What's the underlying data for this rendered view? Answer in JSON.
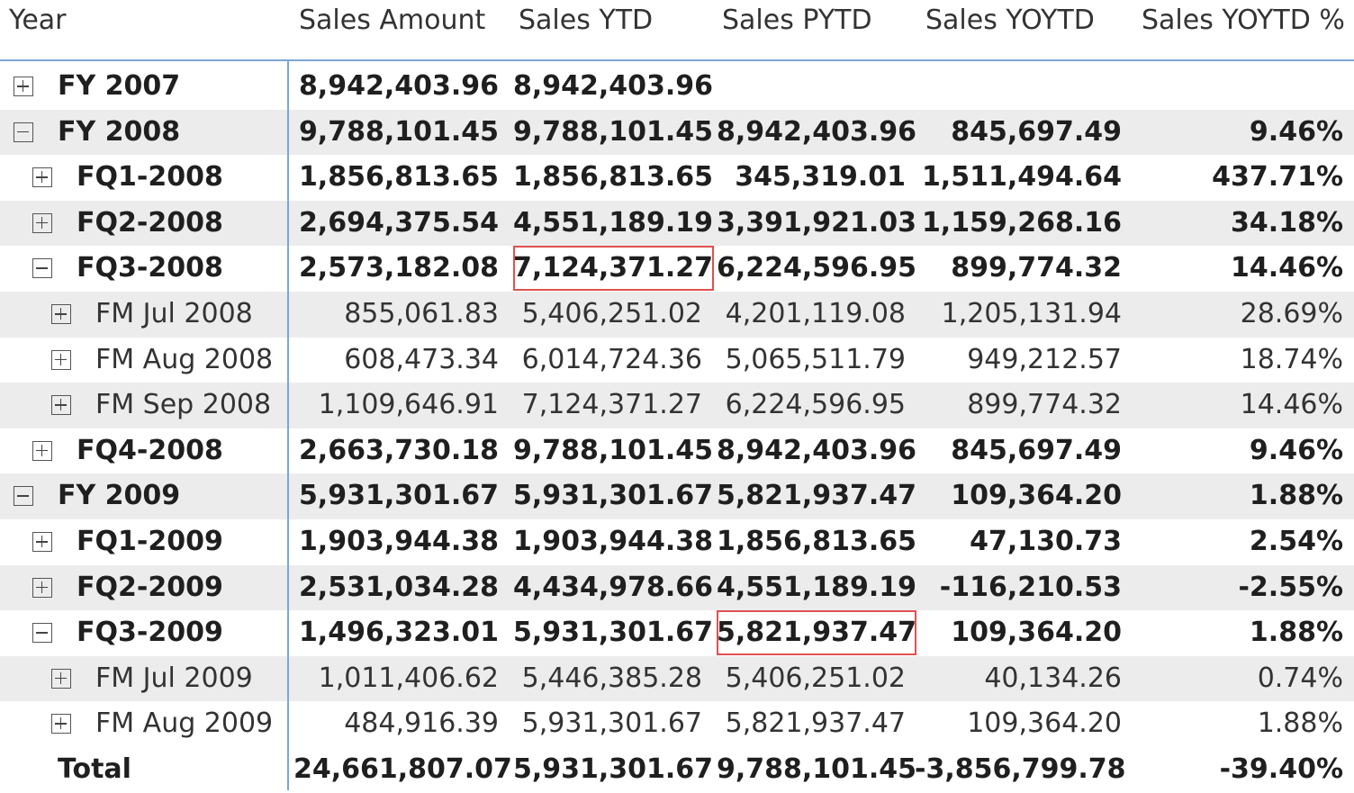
{
  "columns": [
    "Year",
    "Sales Amount",
    "Sales YTD",
    "Sales PYTD",
    "Sales YOYTD",
    "Sales YOYTD %"
  ],
  "rows": [
    {
      "label": "FY 2007",
      "level": 0,
      "state": "collapsed",
      "bold": true,
      "shaded": false,
      "values": [
        "8,942,403.96",
        "8,942,403.96",
        "",
        "",
        ""
      ]
    },
    {
      "label": "FY 2008",
      "level": 0,
      "state": "expanded",
      "bold": true,
      "shaded": true,
      "values": [
        "9,788,101.45",
        "9,788,101.45",
        "8,942,403.96",
        "845,697.49",
        "9.46%"
      ]
    },
    {
      "label": "FQ1-2008",
      "level": 1,
      "state": "collapsed",
      "bold": true,
      "shaded": false,
      "values": [
        "1,856,813.65",
        "1,856,813.65",
        "345,319.01",
        "1,511,494.64",
        "437.71%"
      ]
    },
    {
      "label": "FQ2-2008",
      "level": 1,
      "state": "collapsed",
      "bold": true,
      "shaded": true,
      "values": [
        "2,694,375.54",
        "4,551,189.19",
        "3,391,921.03",
        "1,159,268.16",
        "34.18%"
      ]
    },
    {
      "label": "FQ3-2008",
      "level": 1,
      "state": "expanded",
      "bold": true,
      "shaded": false,
      "values": [
        "2,573,182.08",
        "7,124,371.27",
        "6,224,596.95",
        "899,774.32",
        "14.46%"
      ]
    },
    {
      "label": "FM Jul 2008",
      "level": 2,
      "state": "collapsed",
      "bold": false,
      "shaded": true,
      "values": [
        "855,061.83",
        "5,406,251.02",
        "4,201,119.08",
        "1,205,131.94",
        "28.69%"
      ]
    },
    {
      "label": "FM Aug 2008",
      "level": 2,
      "state": "collapsed",
      "bold": false,
      "shaded": false,
      "values": [
        "608,473.34",
        "6,014,724.36",
        "5,065,511.79",
        "949,212.57",
        "18.74%"
      ]
    },
    {
      "label": "FM Sep 2008",
      "level": 2,
      "state": "collapsed",
      "bold": false,
      "shaded": true,
      "values": [
        "1,109,646.91",
        "7,124,371.27",
        "6,224,596.95",
        "899,774.32",
        "14.46%"
      ]
    },
    {
      "label": "FQ4-2008",
      "level": 1,
      "state": "collapsed",
      "bold": true,
      "shaded": false,
      "values": [
        "2,663,730.18",
        "9,788,101.45",
        "8,942,403.96",
        "845,697.49",
        "9.46%"
      ]
    },
    {
      "label": "FY 2009",
      "level": 0,
      "state": "expanded",
      "bold": true,
      "shaded": true,
      "values": [
        "5,931,301.67",
        "5,931,301.67",
        "5,821,937.47",
        "109,364.20",
        "1.88%"
      ]
    },
    {
      "label": "FQ1-2009",
      "level": 1,
      "state": "collapsed",
      "bold": true,
      "shaded": false,
      "values": [
        "1,903,944.38",
        "1,903,944.38",
        "1,856,813.65",
        "47,130.73",
        "2.54%"
      ]
    },
    {
      "label": "FQ2-2009",
      "level": 1,
      "state": "collapsed",
      "bold": true,
      "shaded": true,
      "values": [
        "2,531,034.28",
        "4,434,978.66",
        "4,551,189.19",
        "-116,210.53",
        "-2.55%"
      ]
    },
    {
      "label": "FQ3-2009",
      "level": 1,
      "state": "expanded",
      "bold": true,
      "shaded": false,
      "values": [
        "1,496,323.01",
        "5,931,301.67",
        "5,821,937.47",
        "109,364.20",
        "1.88%"
      ]
    },
    {
      "label": "FM Jul 2009",
      "level": 2,
      "state": "collapsed",
      "bold": false,
      "shaded": true,
      "values": [
        "1,011,406.62",
        "5,446,385.28",
        "5,406,251.02",
        "40,134.26",
        "0.74%"
      ]
    },
    {
      "label": "FM Aug 2009",
      "level": 2,
      "state": "collapsed",
      "bold": false,
      "shaded": false,
      "values": [
        "484,916.39",
        "5,931,301.67",
        "5,821,937.47",
        "109,364.20",
        "1.88%"
      ]
    },
    {
      "label": "Total",
      "level": 0,
      "state": "none",
      "bold": true,
      "shaded": false,
      "values": [
        "24,661,807.07",
        "5,931,301.67",
        "9,788,101.45",
        "-3,856,799.78",
        "-39.40%"
      ]
    }
  ],
  "highlights": [
    {
      "row": 4,
      "column": 1
    },
    {
      "row": 12,
      "column": 2
    }
  ],
  "colors": {
    "header_rule": "#7ba6d6",
    "row_shade": "#ececec",
    "highlight_border": "#e05050"
  },
  "icons": {
    "collapsed": "expand-plus-icon",
    "expanded": "collapse-minus-icon"
  }
}
